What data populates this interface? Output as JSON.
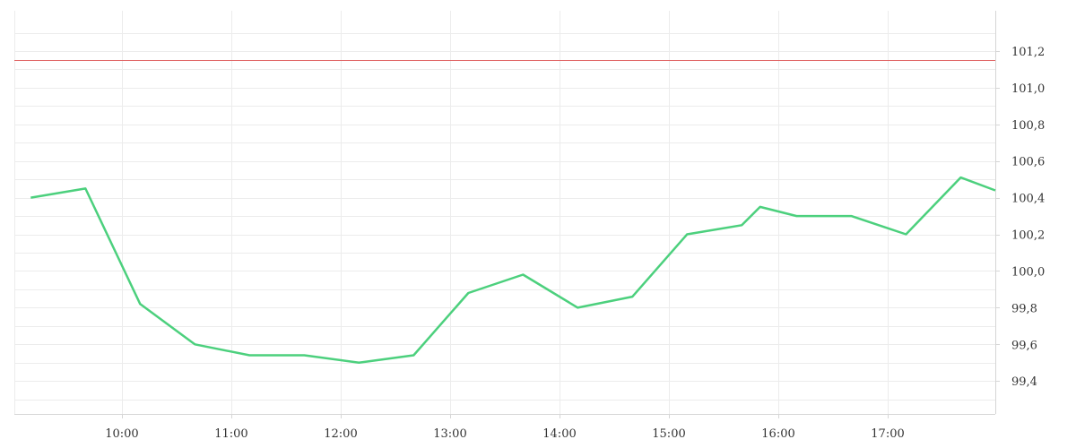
{
  "chart_data": {
    "type": "line",
    "title": "",
    "xlabel": "",
    "ylabel": "",
    "x_tick_labels": [
      "10:00",
      "11:00",
      "12:00",
      "13:00",
      "14:00",
      "15:00",
      "16:00",
      "17:00"
    ],
    "y_tick_labels": [
      "99,4",
      "99,6",
      "99,8",
      "100,0",
      "100,2",
      "100,4",
      "100,6",
      "100,8",
      "101,0",
      "101,2"
    ],
    "y_ticks": [
      99.4,
      99.6,
      99.8,
      100.0,
      100.2,
      100.4,
      100.6,
      100.8,
      101.0,
      101.2
    ],
    "x_ticks": [
      "10:00",
      "11:00",
      "12:00",
      "13:00",
      "14:00",
      "15:00",
      "16:00",
      "17:00"
    ],
    "xlim": [
      "09:01",
      "17:59"
    ],
    "ylim": [
      99.22,
      101.42
    ],
    "y_axis_side": "right",
    "grid": true,
    "series": [
      {
        "color": "#4cd07d",
        "points": [
          {
            "x": "09:10",
            "y": 100.4
          },
          {
            "x": "09:40",
            "y": 100.45
          },
          {
            "x": "10:10",
            "y": 99.82
          },
          {
            "x": "10:40",
            "y": 99.6
          },
          {
            "x": "11:10",
            "y": 99.54
          },
          {
            "x": "11:40",
            "y": 99.54
          },
          {
            "x": "12:10",
            "y": 99.5
          },
          {
            "x": "12:40",
            "y": 99.54
          },
          {
            "x": "13:10",
            "y": 99.88
          },
          {
            "x": "13:40",
            "y": 99.98
          },
          {
            "x": "14:10",
            "y": 99.8
          },
          {
            "x": "14:40",
            "y": 99.86
          },
          {
            "x": "15:10",
            "y": 100.2
          },
          {
            "x": "15:40",
            "y": 100.25
          },
          {
            "x": "15:50",
            "y": 100.35
          },
          {
            "x": "16:10",
            "y": 100.3
          },
          {
            "x": "16:40",
            "y": 100.3
          },
          {
            "x": "17:10",
            "y": 100.2
          },
          {
            "x": "17:40",
            "y": 100.51
          },
          {
            "x": "17:59",
            "y": 100.44
          }
        ]
      }
    ],
    "reference_line": {
      "y": 101.15,
      "color": "#e06666"
    }
  }
}
